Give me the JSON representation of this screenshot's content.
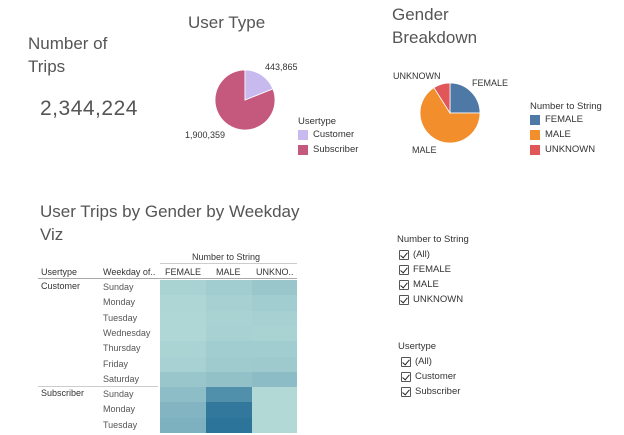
{
  "kpi": {
    "title_line1": "Number of",
    "title_line2": "Trips",
    "value": "2,344,224"
  },
  "user_type": {
    "title": "User Type",
    "label_customer": "443,865",
    "label_subscriber": "1,900,359",
    "legend_title": "Usertype",
    "legend": [
      {
        "label": "Customer",
        "color": "#c8b9ef"
      },
      {
        "label": "Subscriber",
        "color": "#c5587d"
      }
    ]
  },
  "gender": {
    "title_line1": "Gender",
    "title_line2": "Breakdown",
    "label_unknown": "UNKNOWN",
    "label_female": "FEMALE",
    "label_male": "MALE",
    "legend_title": "Number to String",
    "legend": [
      {
        "label": "FEMALE",
        "color": "#4e79a7"
      },
      {
        "label": "MALE",
        "color": "#f28e2b"
      },
      {
        "label": "UNKNOWN",
        "color": "#e15759"
      }
    ]
  },
  "chart_data": [
    {
      "type": "pie",
      "title": "User Type",
      "categories": [
        "Customer",
        "Subscriber"
      ],
      "values": [
        443865,
        1900359
      ]
    },
    {
      "type": "pie",
      "title": "Gender Breakdown",
      "categories": [
        "FEMALE",
        "MALE",
        "UNKNOWN"
      ],
      "values": [
        0.25,
        0.66,
        0.09
      ]
    },
    {
      "type": "heatmap",
      "title": "User Trips by Gender by Weekday Viz",
      "columns": [
        "FEMALE",
        "MALE",
        "UNKNO.."
      ],
      "rows": [
        {
          "usertype": "Customer",
          "weekday": "Sunday",
          "values": [
            0.18,
            0.22,
            0.28
          ]
        },
        {
          "usertype": "Customer",
          "weekday": "Monday",
          "values": [
            0.15,
            0.2,
            0.22
          ]
        },
        {
          "usertype": "Customer",
          "weekday": "Tuesday",
          "values": [
            0.14,
            0.18,
            0.2
          ]
        },
        {
          "usertype": "Customer",
          "weekday": "Wednesday",
          "values": [
            0.14,
            0.19,
            0.18
          ]
        },
        {
          "usertype": "Customer",
          "weekday": "Thursday",
          "values": [
            0.17,
            0.22,
            0.22
          ]
        },
        {
          "usertype": "Customer",
          "weekday": "Friday",
          "values": [
            0.19,
            0.24,
            0.25
          ]
        },
        {
          "usertype": "Customer",
          "weekday": "Saturday",
          "values": [
            0.28,
            0.32,
            0.36
          ]
        },
        {
          "usertype": "Subscriber",
          "weekday": "Sunday",
          "values": [
            0.35,
            0.72,
            0.12
          ]
        },
        {
          "usertype": "Subscriber",
          "weekday": "Monday",
          "values": [
            0.42,
            0.92,
            0.12
          ]
        },
        {
          "usertype": "Subscriber",
          "weekday": "Tuesday",
          "values": [
            0.45,
            0.95,
            0.12
          ]
        }
      ]
    }
  ],
  "viz": {
    "title_line1": "User Trips by Gender by Weekday",
    "title_line2": "Viz",
    "col_group": "Number to String",
    "hdr_usertype": "Usertype",
    "hdr_weekday": "Weekday of..",
    "cols": [
      "FEMALE",
      "MALE",
      "UNKNO.."
    ]
  },
  "filter_gender": {
    "title": "Number to String",
    "items": [
      "(All)",
      "FEMALE",
      "MALE",
      "UNKNOWN"
    ]
  },
  "filter_usertype": {
    "title": "Usertype",
    "items": [
      "(All)",
      "Customer",
      "Subscriber"
    ]
  }
}
